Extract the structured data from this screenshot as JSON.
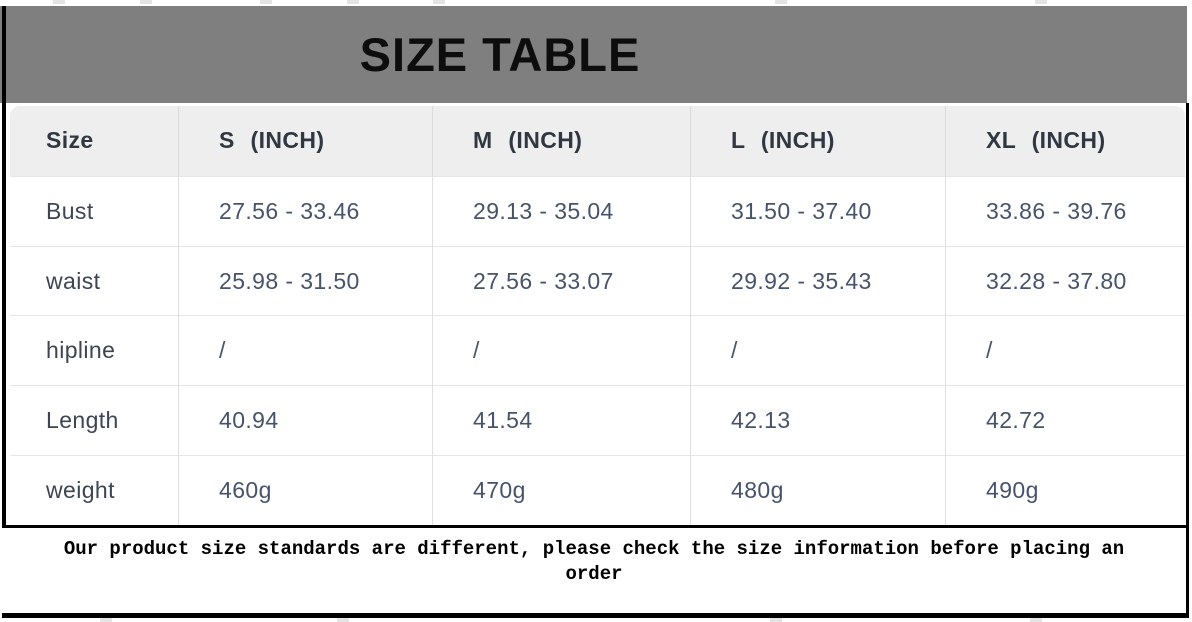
{
  "banner": {
    "title": "SIZE TABLE"
  },
  "table": {
    "columns": [
      "Size",
      "S (INCH)",
      "M (INCH)",
      "L (INCH)",
      "XL (INCH)"
    ],
    "rows": [
      {
        "label": "Bust",
        "values": [
          "27.56 - 33.46",
          "29.13 - 35.04",
          "31.50 - 37.40",
          "33.86 - 39.76"
        ]
      },
      {
        "label": "waist",
        "values": [
          "25.98 - 31.50",
          "27.56 - 33.07",
          "29.92 - 35.43",
          "32.28 - 37.80"
        ]
      },
      {
        "label": "hipline",
        "values": [
          "/",
          "/",
          "/",
          "/"
        ]
      },
      {
        "label": "Length",
        "values": [
          "40.94",
          "41.54",
          "42.13",
          "42.72"
        ]
      },
      {
        "label": "weight",
        "values": [
          "460g",
          "470g",
          "480g",
          "490g"
        ]
      }
    ]
  },
  "footer": {
    "note": "Our product size standards are different, please check the size information before placing an order"
  },
  "colors": {
    "banner_bg": "#7f7f7f",
    "header_row_bg": "#efeeee",
    "value_text": "#47536b",
    "frame_border": "#000000"
  }
}
